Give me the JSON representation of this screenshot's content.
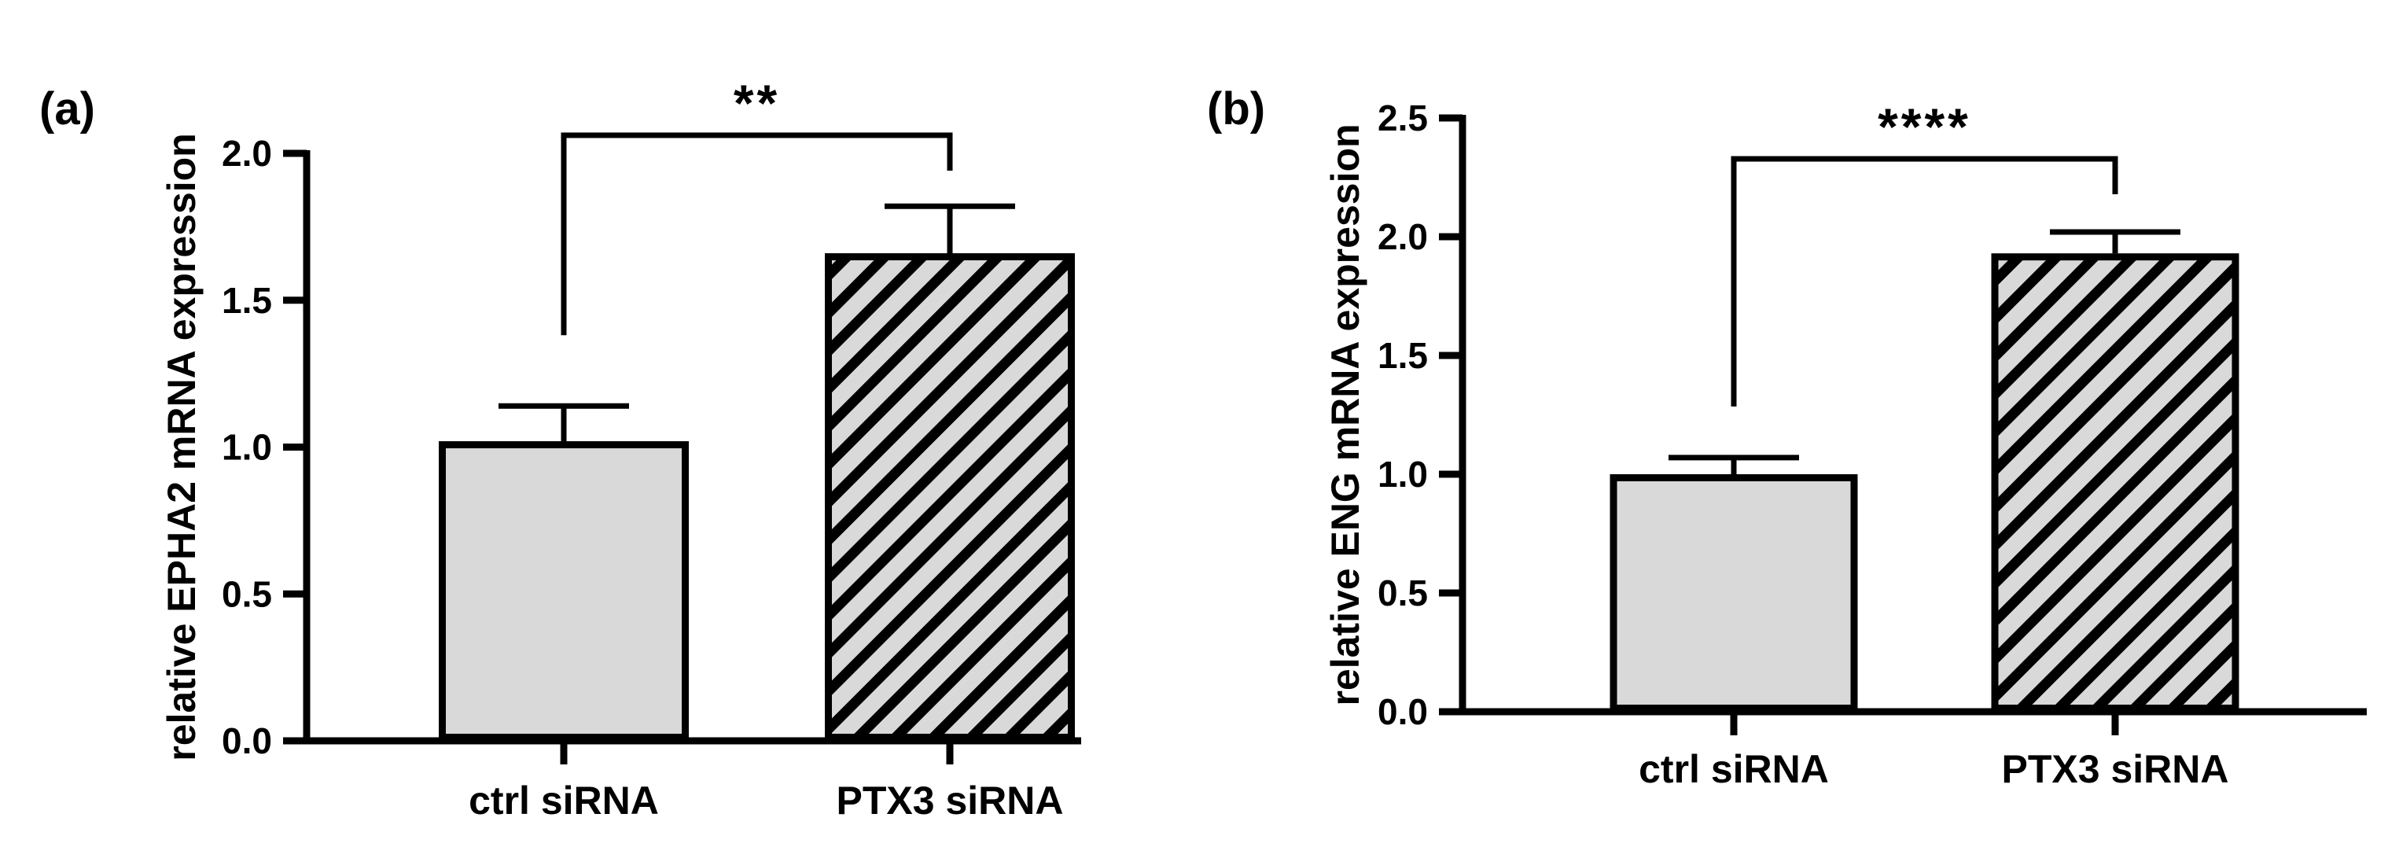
{
  "chart_data": [
    {
      "type": "bar",
      "panel_label": "(a)",
      "ylabel": "relative EPHA2 mRNA expression",
      "xlabel": "",
      "categories": [
        "ctrl siRNA",
        "PTX3 siRNA"
      ],
      "values": [
        1.02,
        1.66
      ],
      "error": [
        0.12,
        0.16
      ],
      "ylim": [
        0,
        2.0
      ],
      "yticks": [
        "0.0",
        "0.5",
        "1.0",
        "1.5",
        "2.0"
      ],
      "patterns": [
        "solid",
        "hatched"
      ],
      "significance": "**",
      "colors": {
        "fill": "#d9d9d9",
        "stroke": "#000000"
      }
    },
    {
      "type": "bar",
      "panel_label": "(b)",
      "ylabel": "relative ENG mRNA expression",
      "xlabel": "",
      "categories": [
        "ctrl siRNA",
        "PTX3 siRNA"
      ],
      "values": [
        1.0,
        1.93
      ],
      "error": [
        0.07,
        0.09
      ],
      "ylim": [
        0,
        2.5
      ],
      "yticks": [
        "0.0",
        "0.5",
        "1.0",
        "1.5",
        "2.0",
        "2.5"
      ],
      "patterns": [
        "solid",
        "hatched"
      ],
      "significance": "****",
      "colors": {
        "fill": "#d9d9d9",
        "stroke": "#000000"
      }
    }
  ]
}
